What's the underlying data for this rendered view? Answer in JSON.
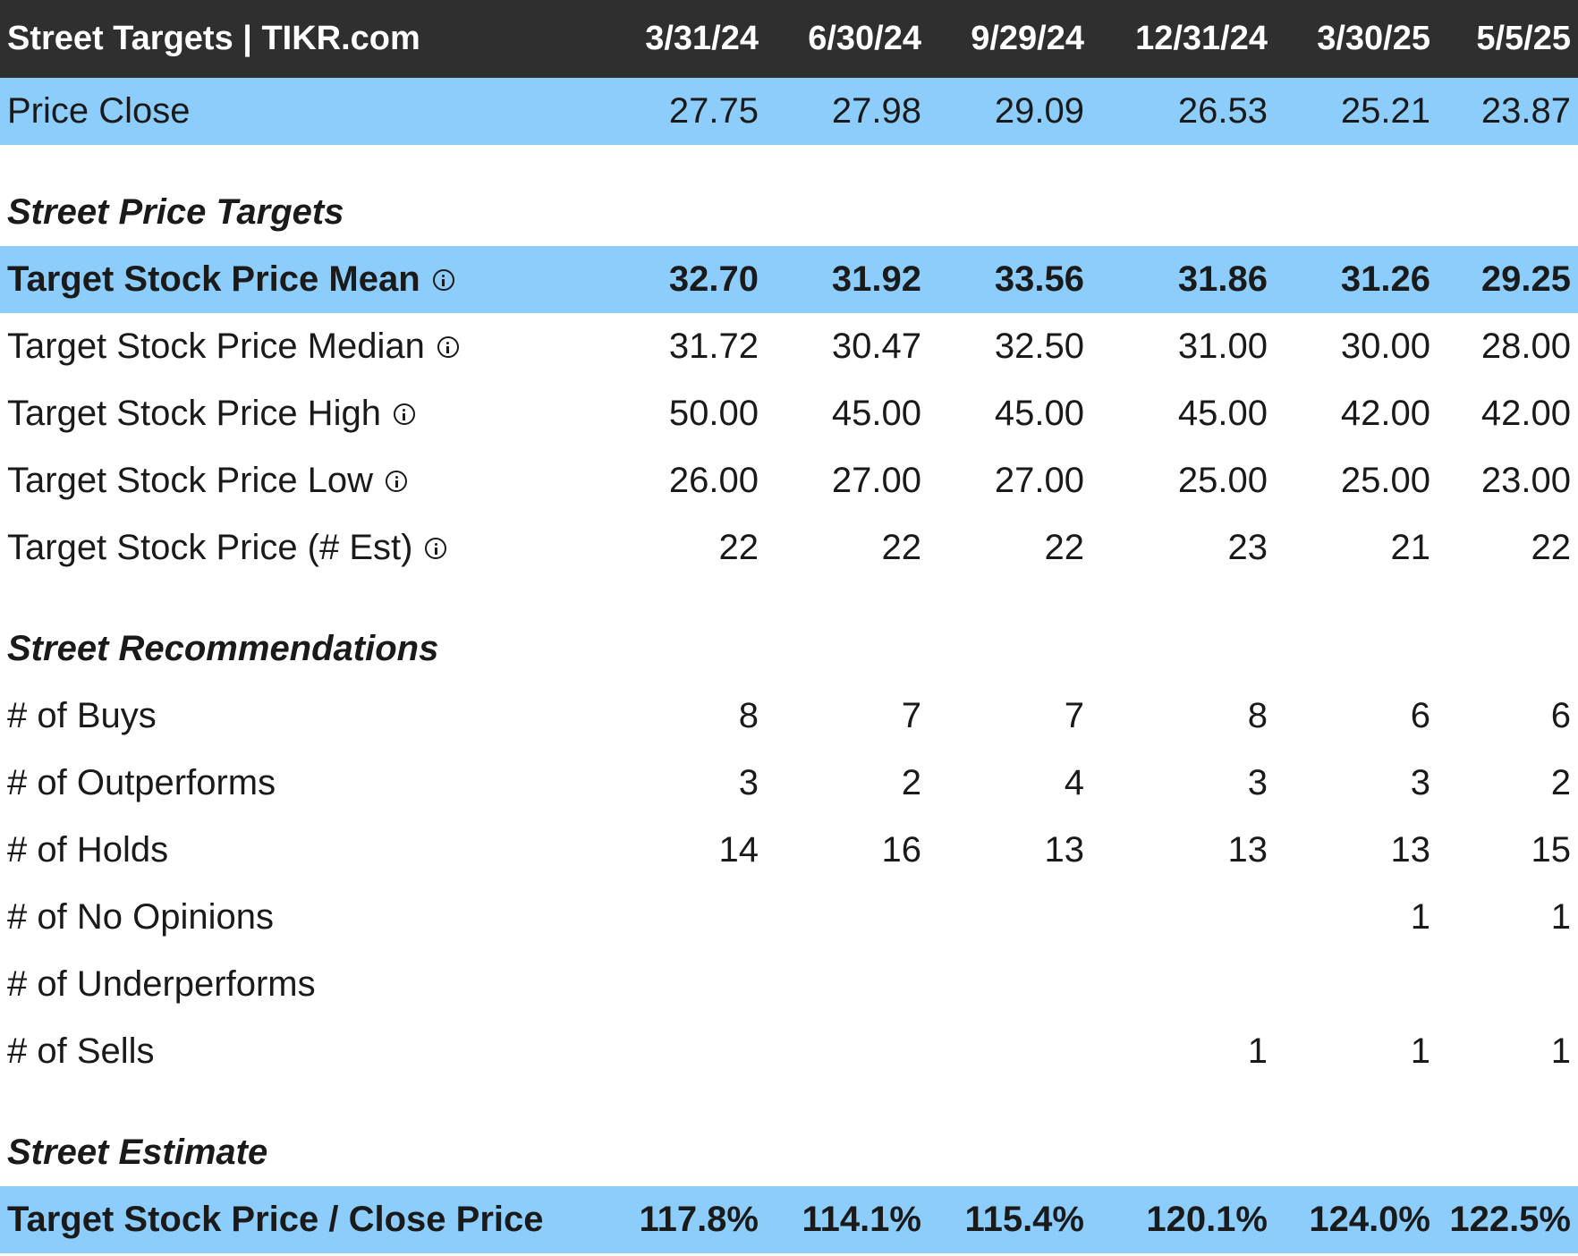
{
  "header": {
    "title": "Street Targets | TIKR.com",
    "dates": [
      "3/31/24",
      "6/30/24",
      "9/29/24",
      "12/31/24",
      "3/30/25",
      "5/5/25"
    ]
  },
  "price_close": {
    "label": "Price Close",
    "values": [
      "27.75",
      "27.98",
      "29.09",
      "26.53",
      "25.21",
      "23.87"
    ]
  },
  "sections": {
    "price_targets": "Street Price Targets",
    "recommendations": "Street Recommendations",
    "estimate": "Street Estimate"
  },
  "price_targets": [
    {
      "label": "Target Stock Price Mean",
      "values": [
        "32.70",
        "31.92",
        "33.56",
        "31.86",
        "31.26",
        "29.25"
      ]
    },
    {
      "label": "Target Stock Price Median",
      "values": [
        "31.72",
        "30.47",
        "32.50",
        "31.00",
        "30.00",
        "28.00"
      ]
    },
    {
      "label": "Target Stock Price High",
      "values": [
        "50.00",
        "45.00",
        "45.00",
        "45.00",
        "42.00",
        "42.00"
      ]
    },
    {
      "label": "Target Stock Price Low",
      "values": [
        "26.00",
        "27.00",
        "27.00",
        "25.00",
        "25.00",
        "23.00"
      ]
    },
    {
      "label": "Target Stock Price (# Est)",
      "values": [
        "22",
        "22",
        "22",
        "23",
        "21",
        "22"
      ]
    }
  ],
  "recommendations": [
    {
      "label": "# of Buys",
      "values": [
        "8",
        "7",
        "7",
        "8",
        "6",
        "6"
      ]
    },
    {
      "label": "# of Outperforms",
      "values": [
        "3",
        "2",
        "4",
        "3",
        "3",
        "2"
      ]
    },
    {
      "label": "# of Holds",
      "values": [
        "14",
        "16",
        "13",
        "13",
        "13",
        "15"
      ]
    },
    {
      "label": "# of No Opinions",
      "values": [
        "",
        "",
        "",
        "",
        "1",
        "1"
      ]
    },
    {
      "label": "# of Underperforms",
      "values": [
        "",
        "",
        "",
        "",
        "",
        ""
      ]
    },
    {
      "label": "# of Sells",
      "values": [
        "",
        "",
        "",
        "1",
        "1",
        "1"
      ]
    }
  ],
  "estimate": {
    "label": "Target Stock Price / Close Price",
    "values": [
      "117.8%",
      "114.1%",
      "115.4%",
      "120.1%",
      "124.0%",
      "122.5%"
    ]
  },
  "colors": {
    "header_bg": "#2f2f2f",
    "highlight_bg": "#8ccdfb"
  },
  "icons": {
    "info": "info-circle-icon"
  }
}
